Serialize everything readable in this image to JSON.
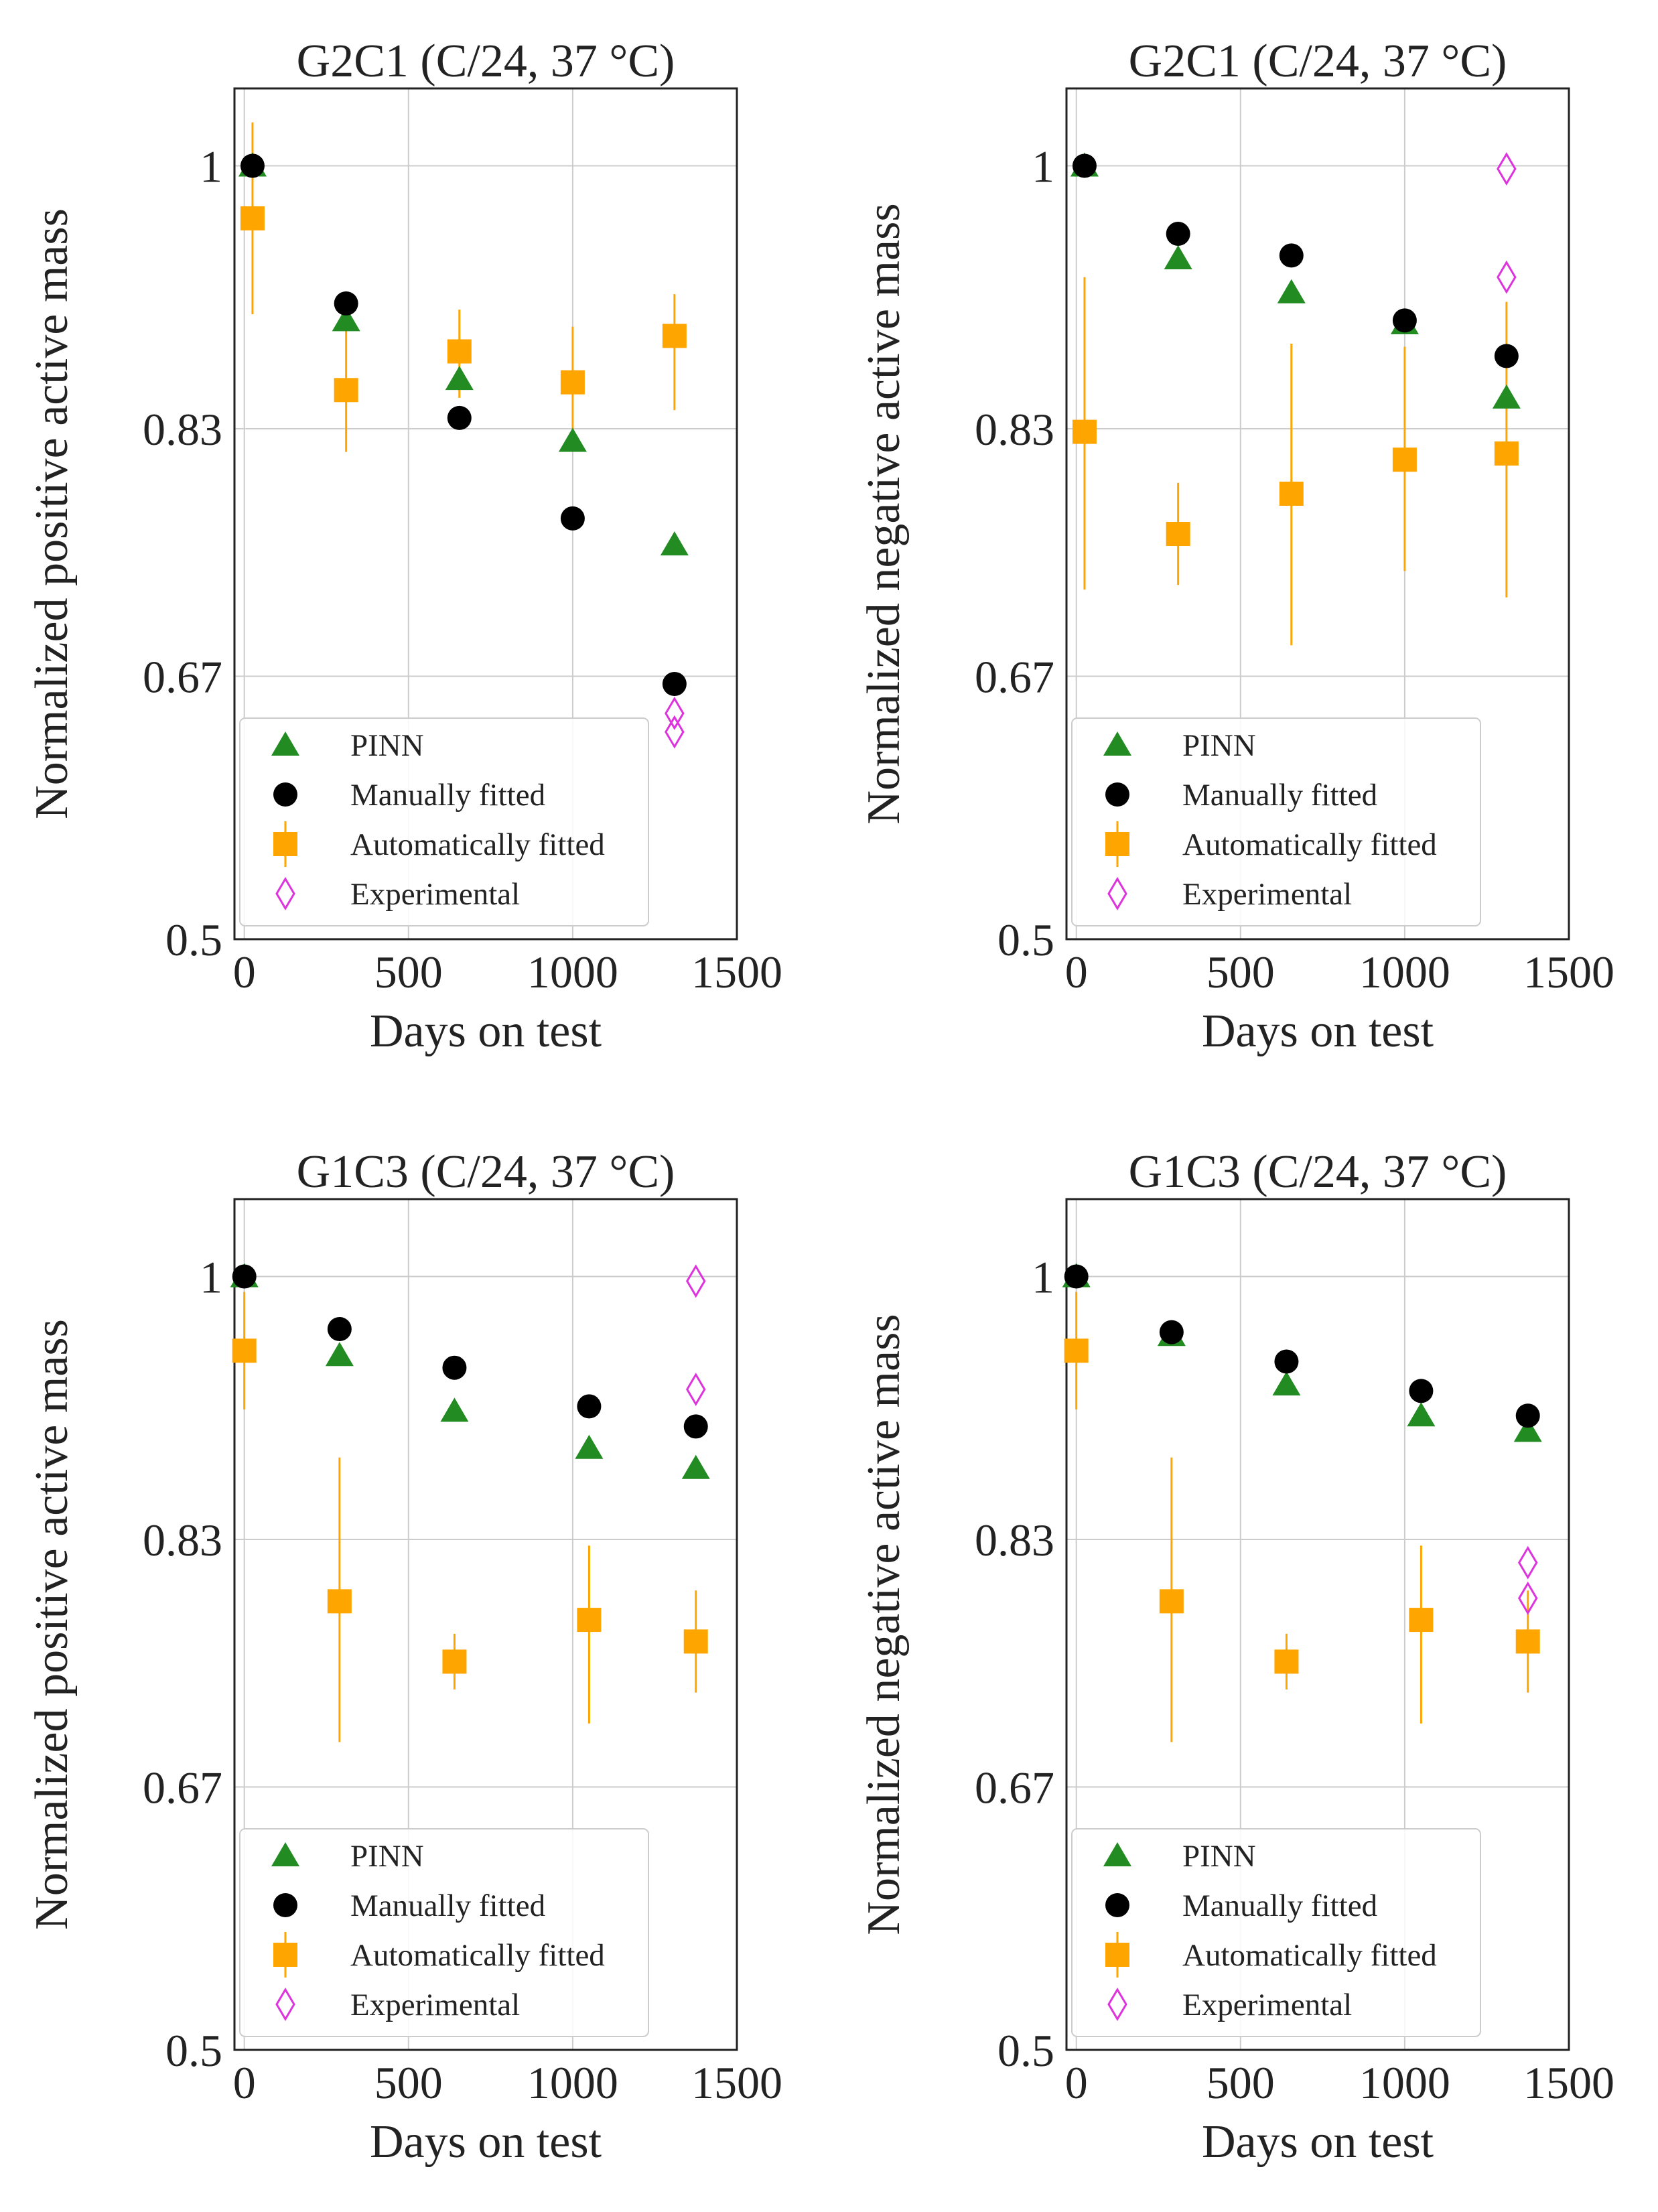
{
  "colors": {
    "pinn": "#228b22",
    "manual": "#000000",
    "auto": "#ffa500",
    "experimental": "#dd33dd",
    "grid": "#cccccc",
    "frame": "#222222",
    "legend_border": "#cccccc"
  },
  "chart_data": [
    {
      "type": "scatter",
      "title": "G2C1 (C/24, 37 °C)",
      "xlabel": "Days on test",
      "ylabel": "Normalized positive active mass",
      "xlim": [
        -30,
        1500
      ],
      "ylim": [
        0.5,
        1.05
      ],
      "xticks": [
        0,
        500,
        1000,
        1500
      ],
      "yticks": [
        0.5,
        0.67,
        0.83,
        1
      ],
      "ytick_labels": [
        "0.5",
        "0.67",
        "0.83",
        "1"
      ],
      "legend": {
        "position": "lower-left",
        "entries": [
          "PINN",
          "Manually fitted",
          "Automatically fitted",
          "Experimental"
        ]
      },
      "series": [
        {
          "name": "PINN",
          "marker": "triangle",
          "x": [
            25,
            310,
            655,
            1000,
            1310
          ],
          "y": [
            1.0,
            0.9,
            0.862,
            0.822,
            0.755
          ]
        },
        {
          "name": "Manually fitted",
          "marker": "circle",
          "x": [
            25,
            310,
            655,
            1000,
            1310
          ],
          "y": [
            1.0,
            0.911,
            0.837,
            0.772,
            0.665
          ]
        },
        {
          "name": "Automatically fitted",
          "marker": "square",
          "x": [
            25,
            310,
            655,
            1000,
            1310
          ],
          "y": [
            0.966,
            0.855,
            0.88,
            0.86,
            0.89
          ],
          "yerr_low": [
            0.904,
            0.815,
            0.85,
            0.818,
            0.842
          ],
          "yerr_high": [
            1.028,
            0.9,
            0.907,
            0.896,
            0.917
          ]
        },
        {
          "name": "Experimental",
          "marker": "diamond",
          "x": [
            1310,
            1310
          ],
          "y": [
            0.646,
            0.634
          ]
        }
      ]
    },
    {
      "type": "scatter",
      "title": "G2C1 (C/24, 37 °C)",
      "xlabel": "Days on test",
      "ylabel": "Normalized negative active mass",
      "xlim": [
        -30,
        1500
      ],
      "ylim": [
        0.5,
        1.05
      ],
      "xticks": [
        0,
        500,
        1000,
        1500
      ],
      "yticks": [
        0.5,
        0.67,
        0.83,
        1
      ],
      "ytick_labels": [
        "0.5",
        "0.67",
        "0.83",
        "1"
      ],
      "legend": {
        "position": "lower-left",
        "entries": [
          "PINN",
          "Manually fitted",
          "Automatically fitted",
          "Experimental"
        ]
      },
      "series": [
        {
          "name": "PINN",
          "marker": "triangle",
          "x": [
            25,
            310,
            655,
            1000,
            1310
          ],
          "y": [
            1.0,
            0.94,
            0.918,
            0.898,
            0.85
          ]
        },
        {
          "name": "Manually fitted",
          "marker": "circle",
          "x": [
            25,
            310,
            655,
            1000,
            1310
          ],
          "y": [
            1.0,
            0.956,
            0.942,
            0.9,
            0.877
          ]
        },
        {
          "name": "Automatically fitted",
          "marker": "square",
          "x": [
            25,
            310,
            655,
            1000,
            1310
          ],
          "y": [
            0.828,
            0.762,
            0.788,
            0.81,
            0.814
          ],
          "yerr_low": [
            0.726,
            0.729,
            0.69,
            0.738,
            0.721
          ],
          "yerr_high": [
            0.928,
            0.795,
            0.885,
            0.883,
            0.912
          ]
        },
        {
          "name": "Experimental",
          "marker": "diamond",
          "x": [
            1310,
            1310
          ],
          "y": [
            0.998,
            0.928
          ]
        }
      ]
    },
    {
      "type": "scatter",
      "title": "G1C3 (C/24, 37 °C)",
      "xlabel": "Days on test",
      "ylabel": "Normalized positive active mass",
      "xlim": [
        -30,
        1500
      ],
      "ylim": [
        0.5,
        1.05
      ],
      "xticks": [
        0,
        500,
        1000,
        1500
      ],
      "yticks": [
        0.5,
        0.67,
        0.83,
        1
      ],
      "ytick_labels": [
        "0.5",
        "0.67",
        "0.83",
        "1"
      ],
      "legend": {
        "position": "lower-left",
        "entries": [
          "PINN",
          "Manually fitted",
          "Automatically fitted",
          "Experimental"
        ]
      },
      "series": [
        {
          "name": "PINN",
          "marker": "triangle",
          "x": [
            0,
            290,
            640,
            1050,
            1375
          ],
          "y": [
            1.0,
            0.949,
            0.913,
            0.889,
            0.876
          ]
        },
        {
          "name": "Manually fitted",
          "marker": "circle",
          "x": [
            0,
            290,
            640,
            1050,
            1375
          ],
          "y": [
            1.0,
            0.966,
            0.941,
            0.916,
            0.903
          ]
        },
        {
          "name": "Automatically fitted",
          "marker": "square",
          "x": [
            0,
            290,
            640,
            1050,
            1375
          ],
          "y": [
            0.952,
            0.79,
            0.751,
            0.778,
            0.764
          ],
          "yerr_low": [
            0.914,
            0.699,
            0.733,
            0.711,
            0.731
          ],
          "yerr_high": [
            0.99,
            0.883,
            0.769,
            0.826,
            0.797
          ]
        },
        {
          "name": "Experimental",
          "marker": "diamond",
          "x": [
            1375,
            1375
          ],
          "y": [
            0.997,
            0.927
          ]
        }
      ]
    },
    {
      "type": "scatter",
      "title": "G1C3 (C/24, 37 °C)",
      "xlabel": "Days on test",
      "ylabel": "Normalized negative active mass",
      "xlim": [
        -30,
        1500
      ],
      "ylim": [
        0.5,
        1.05
      ],
      "xticks": [
        0,
        500,
        1000,
        1500
      ],
      "yticks": [
        0.5,
        0.67,
        0.83,
        1
      ],
      "ytick_labels": [
        "0.5",
        "0.67",
        "0.83",
        "1"
      ],
      "legend": {
        "position": "lower-left",
        "entries": [
          "PINN",
          "Manually fitted",
          "Automatically fitted",
          "Experimental"
        ]
      },
      "series": [
        {
          "name": "PINN",
          "marker": "triangle",
          "x": [
            0,
            290,
            640,
            1050,
            1375
          ],
          "y": [
            1.0,
            0.962,
            0.93,
            0.91,
            0.9
          ]
        },
        {
          "name": "Manually fitted",
          "marker": "circle",
          "x": [
            0,
            290,
            640,
            1050,
            1375
          ],
          "y": [
            1.0,
            0.964,
            0.945,
            0.926,
            0.91
          ]
        },
        {
          "name": "Automatically fitted",
          "marker": "square",
          "x": [
            0,
            290,
            640,
            1050,
            1375
          ],
          "y": [
            0.952,
            0.79,
            0.751,
            0.778,
            0.764
          ],
          "yerr_low": [
            0.914,
            0.699,
            0.733,
            0.711,
            0.731
          ],
          "yerr_high": [
            0.99,
            0.883,
            0.769,
            0.826,
            0.797
          ]
        },
        {
          "name": "Experimental",
          "marker": "diamond",
          "x": [
            1375,
            1375
          ],
          "y": [
            0.815,
            0.792
          ]
        }
      ]
    }
  ]
}
